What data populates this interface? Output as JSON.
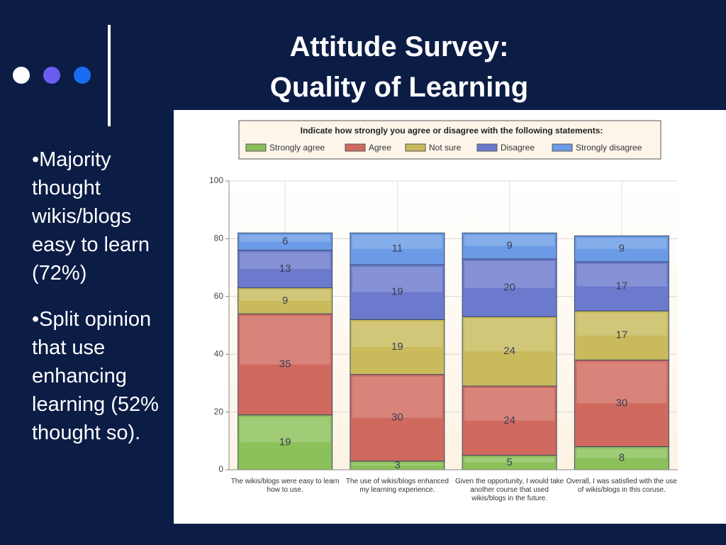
{
  "slide": {
    "title_lines": [
      "Attitude Survey:",
      "Quality of  Learning"
    ],
    "bullets": [
      "•Majority thought wikis/blogs easy to learn (72%)",
      "•Split opinion that use enhancing learning (52% thought so)."
    ]
  },
  "chart_data": {
    "type": "stacked_bar",
    "legend_title": "Indicate how strongly you agree or disagree with the following statements:",
    "categories": [
      "The wikis/blogs were easy to learn how to use.",
      "The use of wikis/blogs enhanced my learning experience.",
      "Given the opportunity, I would take another course that used wikis/blogs in the future.",
      "Overall, I was satisfied with the use of wikis/blogs in this coruse."
    ],
    "series": [
      {
        "name": "Strongly agree",
        "color": "#8cc05a",
        "values": [
          19,
          3,
          5,
          8
        ]
      },
      {
        "name": "Agree",
        "color": "#d06a5e",
        "values": [
          35,
          30,
          24,
          30
        ]
      },
      {
        "name": "Not sure",
        "color": "#c9bb5c",
        "values": [
          9,
          19,
          24,
          17
        ]
      },
      {
        "name": "Disagree",
        "color": "#6c7acd",
        "values": [
          13,
          19,
          20,
          17
        ]
      },
      {
        "name": "Strongly disagree",
        "color": "#6b9be6",
        "values": [
          6,
          11,
          9,
          9
        ]
      }
    ],
    "ylim": [
      0,
      100
    ],
    "yticks": [
      0,
      20,
      40,
      60,
      80,
      100
    ],
    "grid": true
  }
}
